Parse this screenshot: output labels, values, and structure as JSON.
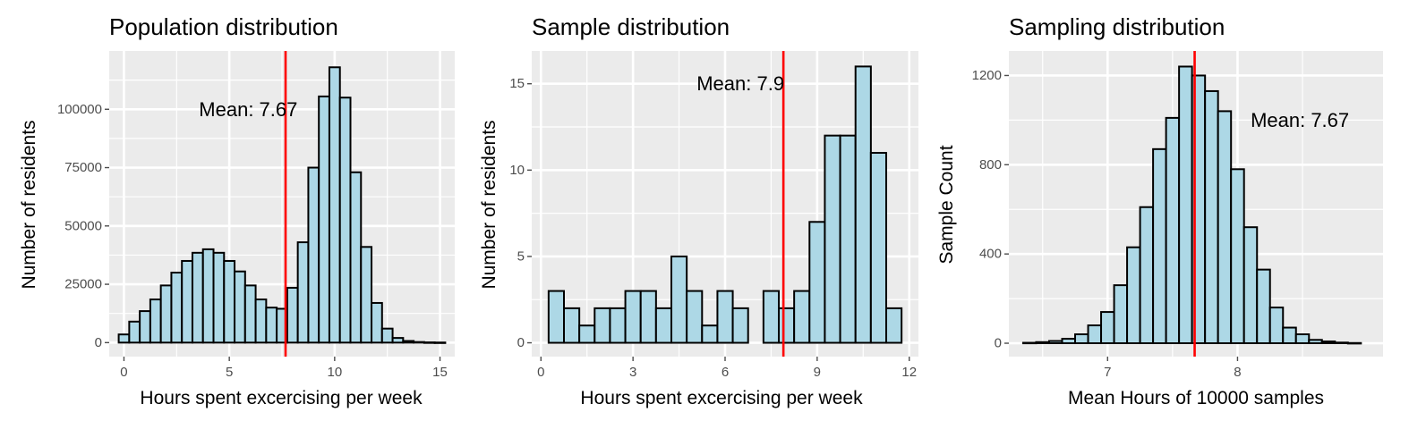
{
  "chart_data": [
    {
      "type": "bar",
      "title": "Population distribution",
      "xlabel": "Hours spent excercising per week",
      "ylabel": "Number of residents",
      "xlim": [
        -0.7,
        15.7
      ],
      "ylim": [
        -6000,
        125000
      ],
      "xticks": [
        0,
        5,
        10,
        15
      ],
      "xtick_labels": [
        "0",
        "5",
        "10",
        "15"
      ],
      "yticks": [
        0,
        25000,
        50000,
        75000,
        100000
      ],
      "ytick_labels": [
        "0",
        "25000",
        "50000",
        "75000",
        "100000"
      ],
      "bin_width": 0.5,
      "x": [
        0,
        0.5,
        1,
        1.5,
        2,
        2.5,
        3,
        3.5,
        4,
        4.5,
        5,
        5.5,
        6,
        6.5,
        7,
        7.5,
        8,
        8.5,
        9,
        9.5,
        10,
        10.5,
        11,
        11.5,
        12,
        12.5,
        13,
        13.5,
        14,
        14.5,
        15
      ],
      "values": [
        3500,
        9000,
        13500,
        18500,
        24500,
        30000,
        35000,
        38500,
        40000,
        38500,
        35000,
        30500,
        24500,
        18500,
        15000,
        14500,
        23500,
        43000,
        75000,
        105500,
        118000,
        105000,
        73000,
        41000,
        17000,
        6000,
        2000,
        700,
        250,
        100,
        50
      ],
      "mean": 7.67,
      "mean_label": "Mean: 7.67",
      "mean_label_pos": [
        5.9,
        100000
      ],
      "grid": true
    },
    {
      "type": "bar",
      "title": "Sample distribution",
      "xlabel": "Hours spent excercising per week",
      "ylabel": "Number of residents",
      "xlim": [
        -0.3,
        12.3
      ],
      "ylim": [
        -0.8,
        16.9
      ],
      "xticks": [
        0,
        3,
        6,
        9,
        12
      ],
      "xtick_labels": [
        "0",
        "3",
        "6",
        "9",
        "12"
      ],
      "yticks": [
        0,
        5,
        10,
        15
      ],
      "ytick_labels": [
        "0",
        "5",
        "10",
        "15"
      ],
      "bin_width": 0.5,
      "x": [
        0.5,
        1,
        1.5,
        2,
        2.5,
        3,
        3.5,
        4,
        4.5,
        5,
        5.5,
        6,
        6.5,
        7,
        7.5,
        8,
        8.5,
        9,
        9.5,
        10,
        10.5,
        11,
        11.5
      ],
      "values": [
        3,
        2,
        1,
        2,
        2,
        3,
        3,
        2,
        5,
        3,
        1,
        3,
        2,
        0,
        3,
        2,
        3,
        7,
        12,
        12,
        16,
        11,
        2
      ],
      "mean": 7.9,
      "mean_label": "Mean: 7.9",
      "mean_label_pos": [
        6.5,
        15
      ],
      "grid": true
    },
    {
      "type": "bar",
      "title": "Sampling distribution",
      "xlabel": "Mean Hours of 10000 samples",
      "ylabel": "Sample Count",
      "xlim": [
        6.24,
        9.12
      ],
      "ylim": [
        -60,
        1310
      ],
      "xticks": [
        7,
        8
      ],
      "xtick_labels": [
        "7",
        "8"
      ],
      "yticks": [
        0,
        400,
        800,
        1200
      ],
      "ytick_labels": [
        "0",
        "400",
        "800",
        "1200"
      ],
      "bin_width": 0.1,
      "x": [
        6.4,
        6.5,
        6.6,
        6.7,
        6.8,
        6.9,
        7.0,
        7.1,
        7.2,
        7.3,
        7.4,
        7.5,
        7.6,
        7.7,
        7.8,
        7.9,
        8.0,
        8.1,
        8.2,
        8.3,
        8.4,
        8.5,
        8.6,
        8.7,
        8.8,
        8.9
      ],
      "values": [
        2,
        5,
        10,
        20,
        40,
        80,
        140,
        260,
        430,
        610,
        870,
        1010,
        1240,
        1200,
        1130,
        1040,
        780,
        520,
        330,
        160,
        70,
        40,
        15,
        8,
        3,
        1
      ],
      "mean": 7.67,
      "mean_label": "Mean: 7.67",
      "mean_label_pos": [
        8.48,
        1000
      ],
      "grid": true
    }
  ],
  "colors": {
    "panel_bg": "#ebebeb",
    "grid": "#ffffff",
    "bar_fill": "#add8e6",
    "bar_stroke": "#000000",
    "mean_line": "#ff0000",
    "tick": "#4d4d4d"
  }
}
